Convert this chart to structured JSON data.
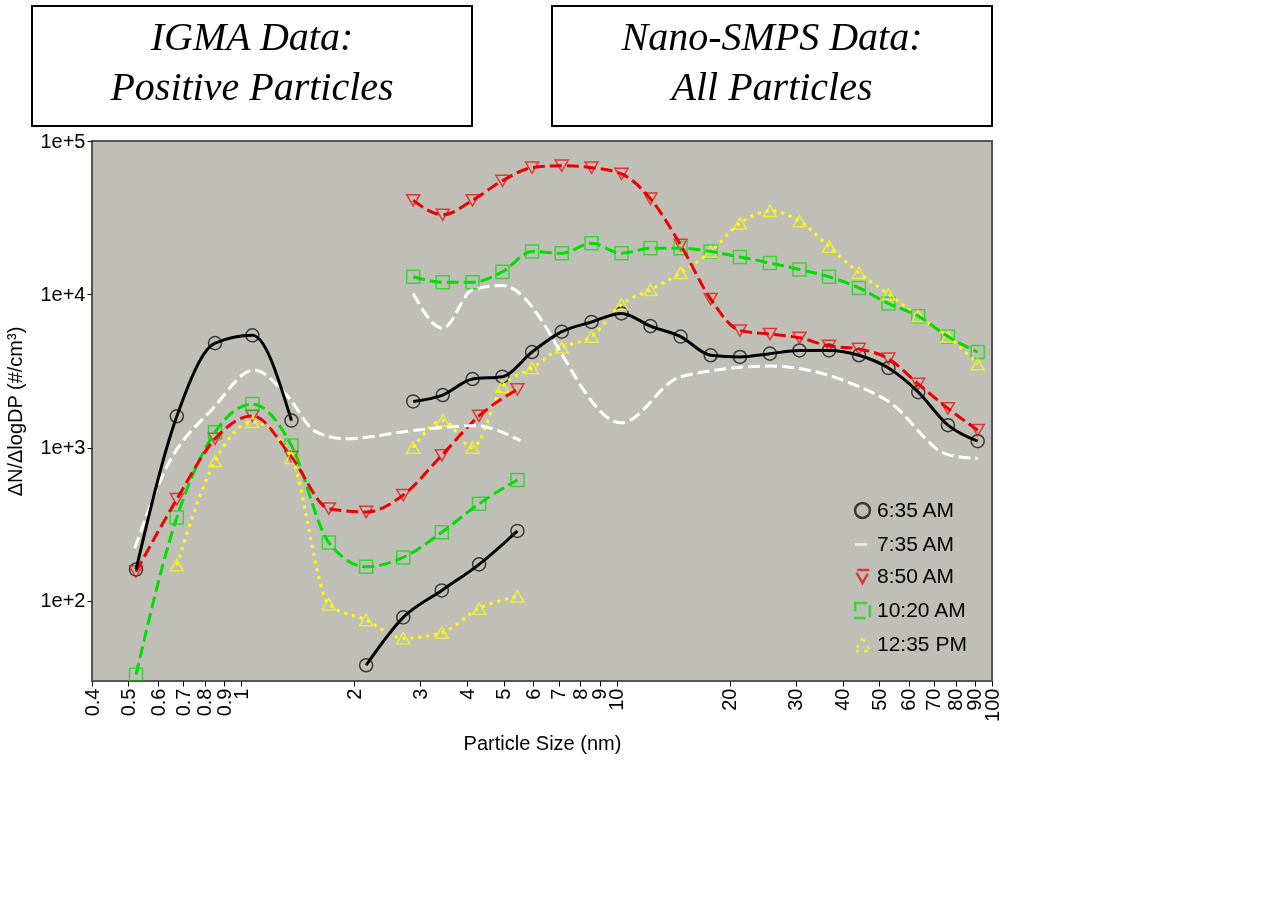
{
  "chart_data": {
    "type": "line",
    "xlabel": "Particle Size (nm)",
    "ylabel": "ΔN/ΔlogDP (#/cm³)",
    "annotations": [
      "IGMA Data:\nPositive Particles",
      "Nano-SMPS Data:\nAll Particles"
    ],
    "log": "xy",
    "legend": "bottom right",
    "grid": false,
    "xlim": [
      0.4,
      100
    ],
    "xticks": [
      0.4,
      0.5,
      0.6,
      0.7,
      0.8,
      0.9,
      1,
      2,
      3,
      4,
      5,
      6,
      7,
      8,
      9,
      10,
      20,
      30,
      40,
      50,
      60,
      70,
      80,
      90,
      100
    ],
    "ylim": [
      30,
      100000
    ],
    "yticks": [
      {
        "value": 100,
        "label": "1e+2"
      },
      {
        "value": 1000,
        "label": "1e+3"
      },
      {
        "value": 10000,
        "label": "1e+4"
      },
      {
        "value": 100000,
        "label": "1e+5"
      }
    ],
    "series": [
      {
        "name": "6:35 AM",
        "color": "#000000",
        "marker": "circle",
        "line_style": "solid",
        "x": [
          0.524,
          0.673,
          0.851,
          1.07,
          1.36,
          null,
          2.15,
          2.7,
          3.42,
          4.3,
          5.44,
          null,
          2.87,
          3.44,
          4.13,
          4.96,
          5.95,
          7.14,
          8.57,
          10.3,
          12.3,
          14.8,
          17.8,
          21.3,
          25.6,
          30.7,
          36.8,
          44.2,
          53.0,
          63.6,
          76.3,
          91.6
        ],
        "values": [
          160,
          1600,
          4800,
          5400,
          1500,
          null,
          38,
          78,
          117,
          173,
          286,
          null,
          2000,
          2200,
          2800,
          2900,
          4200,
          5700,
          6600,
          7500,
          6200,
          5300,
          4000,
          3900,
          4100,
          4300,
          4300,
          4000,
          3300,
          2300,
          1400,
          1100
        ]
      },
      {
        "name": "7:35 AM",
        "color": "#ffffff",
        "marker": "none",
        "line_style": "dashed",
        "x": [
          0.52,
          0.626,
          0.84,
          1.08,
          1.33,
          1.57,
          1.89,
          2.87,
          4.17,
          5.54,
          null,
          2.87,
          3.44,
          4.13,
          4.96,
          10.3,
          14.8,
          25.6,
          44.2,
          53.0,
          76.3,
          91.6
        ],
        "values": [
          220,
          710,
          1800,
          3200,
          2150,
          1280,
          1140,
          1290,
          1390,
          1110,
          null,
          10100,
          6000,
          10700,
          11400,
          1450,
          2900,
          3400,
          2500,
          2000,
          900,
          850
        ]
      },
      {
        "name": "8:50 AM",
        "color": "#ee0000",
        "marker": "triangle-down",
        "line_style": "dashed",
        "x": [
          0.524,
          0.673,
          0.851,
          1.07,
          1.36,
          1.71,
          2.15,
          2.7,
          3.42,
          4.3,
          5.44,
          null,
          2.87,
          3.44,
          4.13,
          4.96,
          5.95,
          7.14,
          8.57,
          10.3,
          12.3,
          14.8,
          17.8,
          21.3,
          25.6,
          30.7,
          36.8,
          44.2,
          53.0,
          63.6,
          76.3,
          91.6
        ],
        "values": [
          155,
          460,
          1140,
          1610,
          870,
          400,
          380,
          490,
          890,
          1610,
          2400,
          null,
          41000,
          33000,
          41000,
          55000,
          67000,
          69000,
          67000,
          61000,
          42000,
          21000,
          9300,
          5800,
          5500,
          5200,
          4600,
          4400,
          3800,
          2600,
          1800,
          1300
        ]
      },
      {
        "name": "10:20 AM",
        "color": "#00dd00",
        "marker": "square",
        "line_style": "dashed",
        "x": [
          0.524,
          0.673,
          0.851,
          1.07,
          1.36,
          1.71,
          2.15,
          2.7,
          3.42,
          4.3,
          5.44,
          null,
          2.87,
          3.44,
          4.13,
          4.96,
          5.95,
          7.14,
          8.57,
          10.3,
          12.3,
          14.8,
          17.8,
          21.3,
          25.6,
          30.7,
          36.8,
          44.2,
          53.0,
          63.6,
          76.3,
          91.6
        ],
        "values": [
          33,
          350,
          1260,
          1920,
          1030,
          240,
          167,
          192,
          280,
          430,
          615,
          null,
          13000,
          12000,
          12000,
          14000,
          19000,
          18500,
          21500,
          18500,
          20000,
          20000,
          19000,
          17500,
          16000,
          14500,
          13000,
          11000,
          8700,
          7200,
          5300,
          4200
        ]
      },
      {
        "name": "12:35 PM",
        "color": "#ffff00",
        "marker": "triangle",
        "line_style": "dotted",
        "x": [
          0.673,
          0.851,
          1.07,
          1.36,
          1.71,
          2.15,
          2.7,
          3.42,
          4.3,
          5.44,
          null,
          2.87,
          3.44,
          4.13,
          4.96,
          5.95,
          7.14,
          8.57,
          10.3,
          12.3,
          14.8,
          17.8,
          21.3,
          25.6,
          30.7,
          36.8,
          44.2,
          53.0,
          63.6,
          76.3,
          91.6
        ],
        "values": [
          171,
          815,
          1470,
          857,
          95,
          75,
          57,
          62,
          89,
          107,
          null,
          1000,
          1500,
          1000,
          2500,
          3300,
          4500,
          5300,
          8600,
          10700,
          13800,
          19000,
          29000,
          35000,
          30000,
          20500,
          13800,
          10000,
          7200,
          5300,
          3500
        ]
      }
    ]
  }
}
